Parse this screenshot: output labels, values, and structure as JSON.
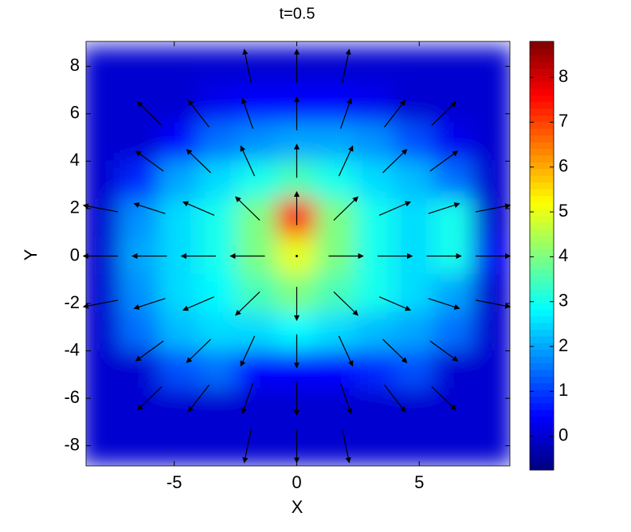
{
  "chart_data": {
    "type": "heatmap-quiver",
    "title": "t=0.5",
    "x_label": "X",
    "y_label": "Y",
    "xlim": [
      -8.6,
      8.7
    ],
    "ylim": [
      -8.85,
      9.05
    ],
    "xticks": [
      -5,
      0,
      5
    ],
    "yticks": [
      -8,
      -6,
      -4,
      -2,
      0,
      2,
      4,
      6,
      8
    ],
    "colormap": "jet",
    "clim": [
      -0.75,
      8.8
    ],
    "cticks": [
      0,
      1,
      2,
      3,
      4,
      5,
      6,
      7,
      8
    ],
    "grid_x": [
      -8,
      -6.4,
      -4.8,
      -3.2,
      -1.6,
      0,
      1.6,
      3.2,
      4.8,
      6.4,
      8
    ],
    "grid_y": [
      8,
      6.4,
      4.8,
      3.2,
      1.6,
      0,
      -1.6,
      -3.2,
      -4.8,
      -6.4,
      -8
    ],
    "z": [
      [
        0,
        0,
        0,
        0,
        0,
        0,
        0,
        0,
        0,
        0,
        0
      ],
      [
        0,
        0,
        0,
        0.3,
        0.5,
        0.5,
        0.5,
        0.3,
        0,
        0,
        0
      ],
      [
        0,
        0,
        0.5,
        1.5,
        1.8,
        2,
        2,
        1.8,
        1.2,
        0.3,
        0
      ],
      [
        0,
        0.8,
        2,
        2.5,
        3,
        3.5,
        3,
        2.5,
        2.2,
        1.5,
        0
      ],
      [
        0,
        1.8,
        2.5,
        3,
        4,
        7.5,
        4,
        3,
        2.5,
        3,
        0
      ],
      [
        0,
        2,
        2.5,
        3,
        4,
        5,
        4,
        3,
        2.5,
        3,
        0.3
      ],
      [
        0,
        1.8,
        2.5,
        2.8,
        3.5,
        4,
        3.5,
        3,
        2.5,
        2,
        0
      ],
      [
        0,
        1.5,
        2.2,
        2.5,
        2.5,
        2.8,
        2.5,
        2.2,
        2,
        1.5,
        0
      ],
      [
        0,
        0,
        1.2,
        1.5,
        0.5,
        0.5,
        0.5,
        0.8,
        1.2,
        0,
        0
      ],
      [
        0,
        0,
        0,
        0,
        0,
        0,
        0,
        0,
        0,
        0,
        0
      ],
      [
        0,
        0,
        0,
        0,
        0,
        0,
        0,
        0,
        0,
        0,
        0
      ]
    ],
    "arrow_x": [
      -8,
      -6,
      -4,
      -2,
      0,
      2,
      4,
      6,
      8
    ],
    "arrow_y": [
      8,
      6,
      4,
      2,
      0,
      -2,
      -4,
      -6,
      -8
    ],
    "u": [
      [
        null,
        null,
        null,
        -0.2,
        0,
        0.2,
        null,
        null,
        null
      ],
      [
        null,
        -0.7,
        -0.6,
        -0.3,
        0,
        0.3,
        0.6,
        0.7,
        null
      ],
      [
        null,
        -0.8,
        -0.7,
        -0.4,
        0,
        0.4,
        0.7,
        0.8,
        null
      ],
      [
        -1,
        -0.9,
        -0.9,
        -0.7,
        0,
        0.7,
        0.9,
        0.9,
        1
      ],
      [
        -1,
        -1,
        -1,
        -1,
        0,
        1,
        1,
        1,
        1
      ],
      [
        -1,
        -0.9,
        -0.9,
        -0.7,
        0,
        0.7,
        0.9,
        0.9,
        1
      ],
      [
        null,
        -0.8,
        -0.7,
        -0.4,
        0,
        0.4,
        0.7,
        0.8,
        null
      ],
      [
        null,
        -0.7,
        -0.6,
        -0.3,
        0,
        0.3,
        0.6,
        0.7,
        null
      ],
      [
        null,
        null,
        null,
        -0.2,
        0,
        0.2,
        null,
        null,
        null
      ]
    ],
    "v": [
      [
        null,
        null,
        null,
        1,
        1,
        1,
        null,
        null,
        null
      ],
      [
        null,
        0.7,
        0.8,
        0.9,
        1,
        0.9,
        0.8,
        0.7,
        null
      ],
      [
        null,
        0.6,
        0.7,
        0.9,
        1,
        0.9,
        0.7,
        0.6,
        null
      ],
      [
        0.2,
        0.3,
        0.4,
        0.7,
        1,
        0.7,
        0.4,
        0.3,
        0.2
      ],
      [
        0,
        0,
        0,
        0,
        0,
        0,
        0,
        0,
        0
      ],
      [
        -0.2,
        -0.3,
        -0.4,
        -0.7,
        -1,
        -0.7,
        -0.4,
        -0.3,
        -0.2
      ],
      [
        null,
        -0.6,
        -0.7,
        -0.9,
        -1,
        -0.9,
        -0.7,
        -0.6,
        null
      ],
      [
        null,
        -0.7,
        -0.8,
        -0.9,
        -1,
        -0.9,
        -0.8,
        -0.7,
        null
      ],
      [
        null,
        null,
        null,
        -1,
        -1,
        -1,
        null,
        null,
        null
      ]
    ]
  }
}
